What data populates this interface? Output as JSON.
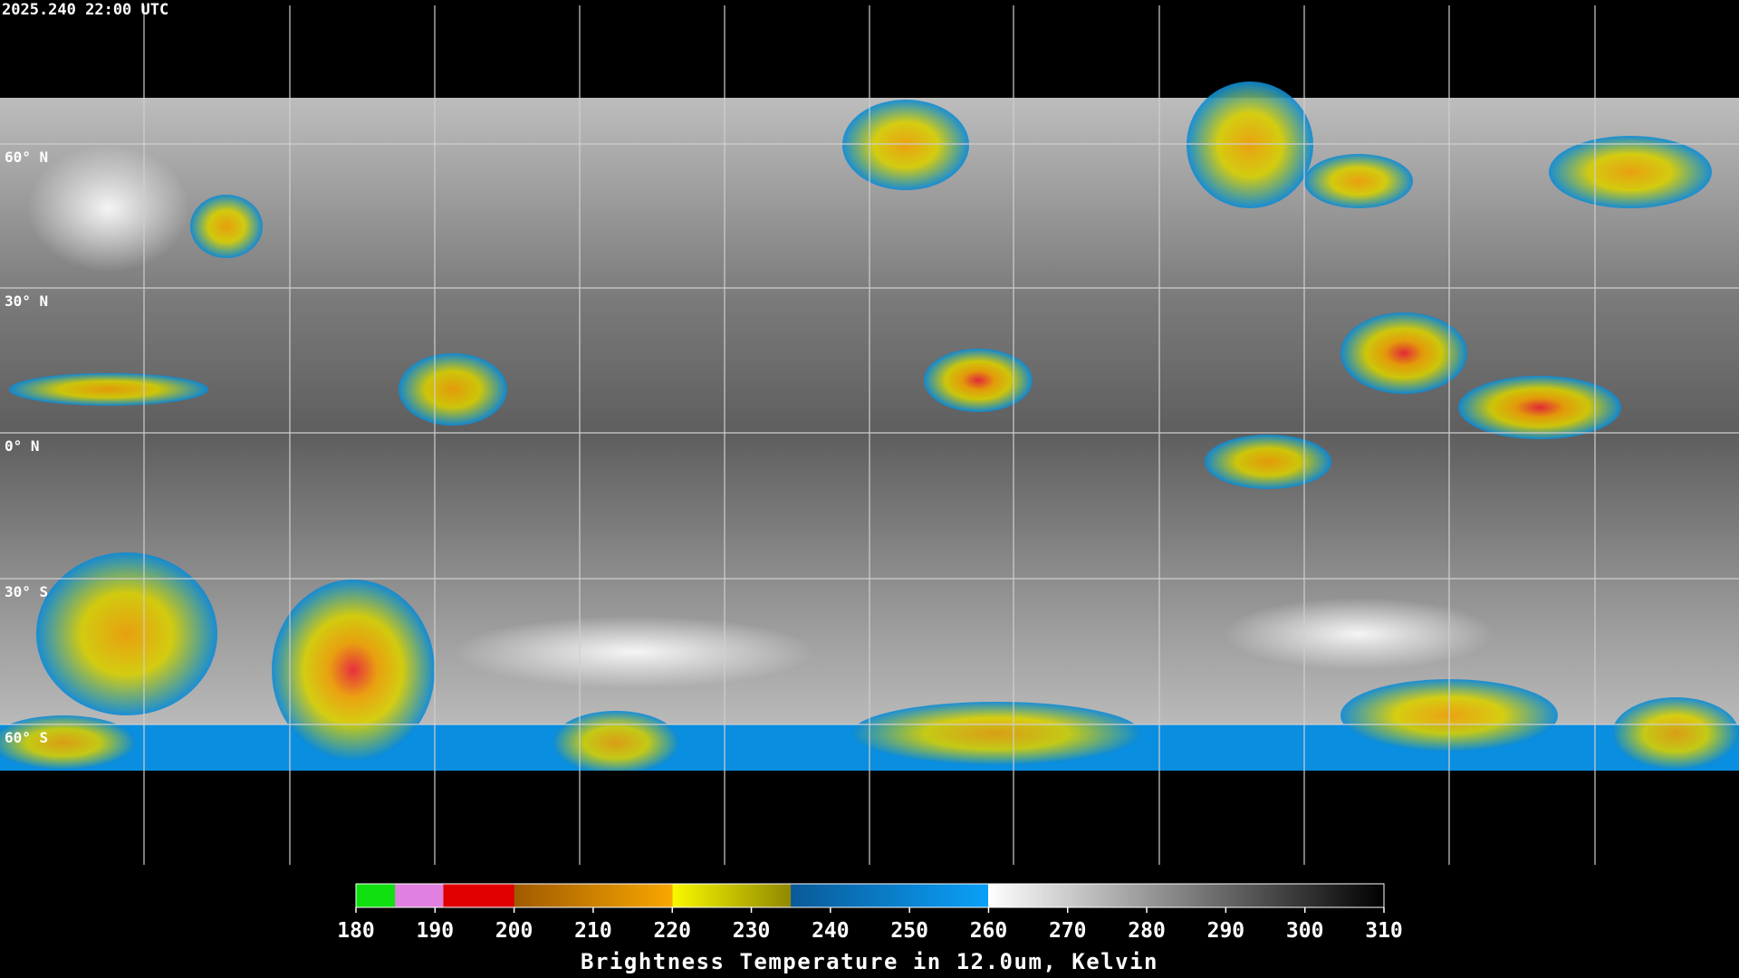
{
  "header": {
    "timestamp": "2025.240 22:00 UTC"
  },
  "map": {
    "latitude_labels": [
      "60° N",
      "30° N",
      "0° N",
      "30° S",
      "60° S"
    ]
  },
  "colorbar": {
    "ticks": [
      180,
      190,
      200,
      210,
      220,
      230,
      240,
      250,
      260,
      270,
      280,
      290,
      300,
      310
    ],
    "title": "Brightness Temperature in 12.0um, Kelvin"
  }
}
